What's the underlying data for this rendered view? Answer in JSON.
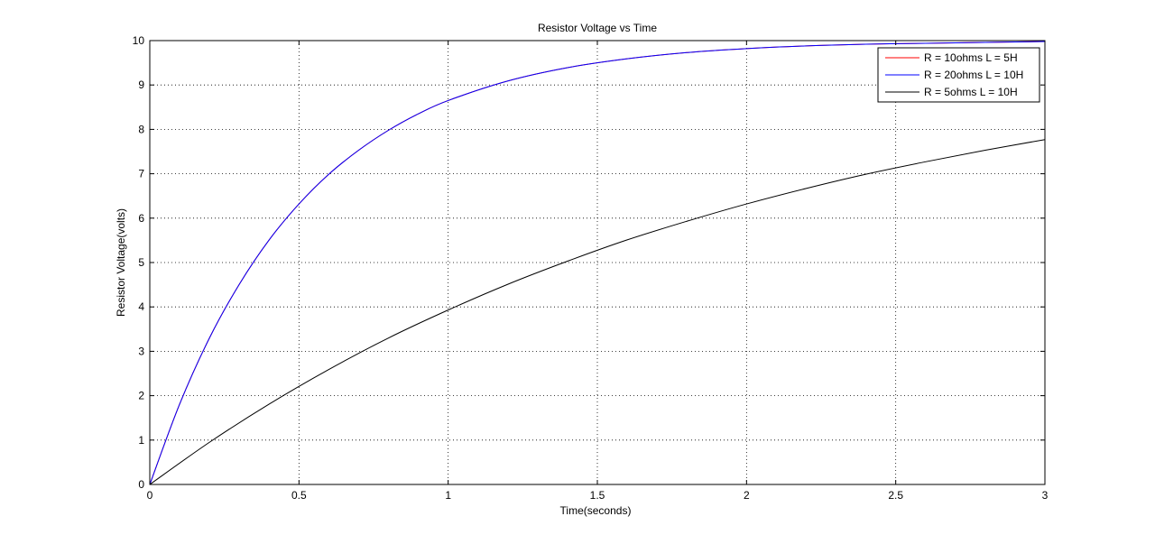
{
  "chart_data": {
    "type": "line",
    "title": "Resistor Voltage vs Time",
    "xlabel": "Time(seconds)",
    "ylabel": "Resistor Voltage(volts)",
    "xlim": [
      0,
      3
    ],
    "ylim": [
      0,
      10
    ],
    "xticks": [
      "0",
      "0.5",
      "1",
      "1.5",
      "2",
      "2.5",
      "3"
    ],
    "yticks": [
      "0",
      "1",
      "2",
      "3",
      "4",
      "5",
      "6",
      "7",
      "8",
      "9",
      "10"
    ],
    "grid": true,
    "legend_position": "top-right",
    "series": [
      {
        "name": "R = 10ohms L = 5H",
        "color": "#ff0000",
        "x": [
          0,
          0.1,
          0.2,
          0.3,
          0.4,
          0.5,
          0.6,
          0.7,
          0.8,
          0.9,
          1.0,
          1.2,
          1.4,
          1.6,
          1.8,
          2.0,
          2.2,
          2.4,
          2.6,
          2.8,
          3.0
        ],
        "y": [
          0,
          1.81,
          3.3,
          4.51,
          5.51,
          6.32,
          6.99,
          7.53,
          7.98,
          8.35,
          8.65,
          9.09,
          9.39,
          9.59,
          9.73,
          9.82,
          9.88,
          9.92,
          9.94,
          9.96,
          9.98
        ]
      },
      {
        "name": "R = 20ohms L = 10H",
        "color": "#0000ff",
        "x": [
          0,
          0.1,
          0.2,
          0.3,
          0.4,
          0.5,
          0.6,
          0.7,
          0.8,
          0.9,
          1.0,
          1.2,
          1.4,
          1.6,
          1.8,
          2.0,
          2.2,
          2.4,
          2.6,
          2.8,
          3.0
        ],
        "y": [
          0,
          1.81,
          3.3,
          4.51,
          5.51,
          6.32,
          6.99,
          7.53,
          7.98,
          8.35,
          8.65,
          9.09,
          9.39,
          9.59,
          9.73,
          9.82,
          9.88,
          9.92,
          9.94,
          9.96,
          9.98
        ]
      },
      {
        "name": "R = 5ohms L = 10H",
        "color": "#000000",
        "x": [
          0,
          0.2,
          0.4,
          0.6,
          0.8,
          1.0,
          1.2,
          1.4,
          1.6,
          1.8,
          2.0,
          2.2,
          2.4,
          2.6,
          2.8,
          3.0
        ],
        "y": [
          0,
          0.95,
          1.81,
          2.59,
          3.3,
          3.93,
          4.51,
          5.03,
          5.51,
          5.93,
          6.32,
          6.67,
          6.99,
          7.27,
          7.53,
          7.77
        ]
      }
    ]
  }
}
